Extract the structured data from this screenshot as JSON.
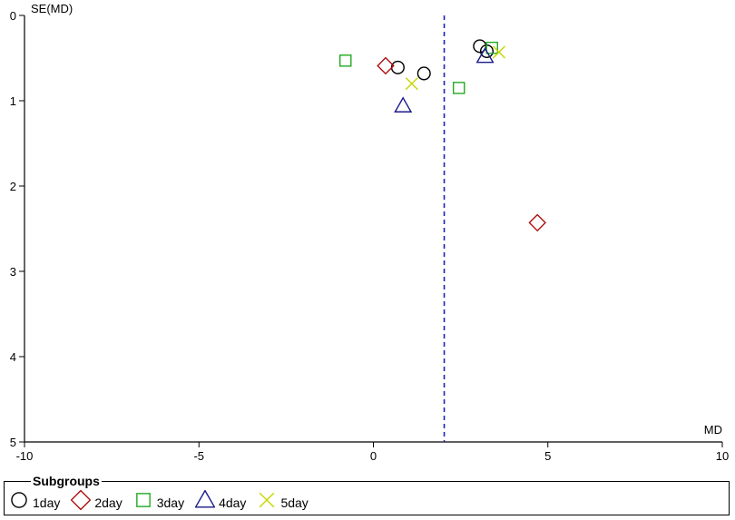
{
  "chart_data": {
    "type": "scatter",
    "subtype": "funnel-plot",
    "xlabel": "MD",
    "ylabel": "SE(MD)",
    "xlim": [
      -10,
      10
    ],
    "ylim": [
      5,
      0
    ],
    "y_reversed": true,
    "x_ticks": [
      -10,
      -5,
      0,
      5,
      10
    ],
    "y_ticks": [
      0,
      1,
      2,
      3,
      4,
      5
    ],
    "reference_line_x": 2.03,
    "reference_line_style": "dashed",
    "reference_line_color": "#1f1fb4",
    "legend_title": "Subgroups",
    "legend_position": "bottom",
    "series": [
      {
        "name": "1day",
        "marker": "circle",
        "color": "#000000",
        "points": [
          [
            0.7,
            0.61
          ],
          [
            1.45,
            0.68
          ],
          [
            3.05,
            0.36
          ],
          [
            3.25,
            0.42
          ]
        ]
      },
      {
        "name": "2day",
        "marker": "diamond",
        "color": "#b01010",
        "points": [
          [
            0.35,
            0.59
          ],
          [
            4.7,
            2.43
          ]
        ]
      },
      {
        "name": "3day",
        "marker": "square",
        "color": "#22aa22",
        "points": [
          [
            -0.8,
            0.53
          ],
          [
            2.45,
            0.85
          ],
          [
            3.4,
            0.38
          ]
        ]
      },
      {
        "name": "4day",
        "marker": "triangle",
        "color": "#1a1a8c",
        "points": [
          [
            0.85,
            1.06
          ],
          [
            3.2,
            0.48
          ]
        ]
      },
      {
        "name": "5day",
        "marker": "cross",
        "color": "#c8d400",
        "points": [
          [
            1.1,
            0.8
          ],
          [
            3.6,
            0.43
          ]
        ]
      }
    ]
  }
}
